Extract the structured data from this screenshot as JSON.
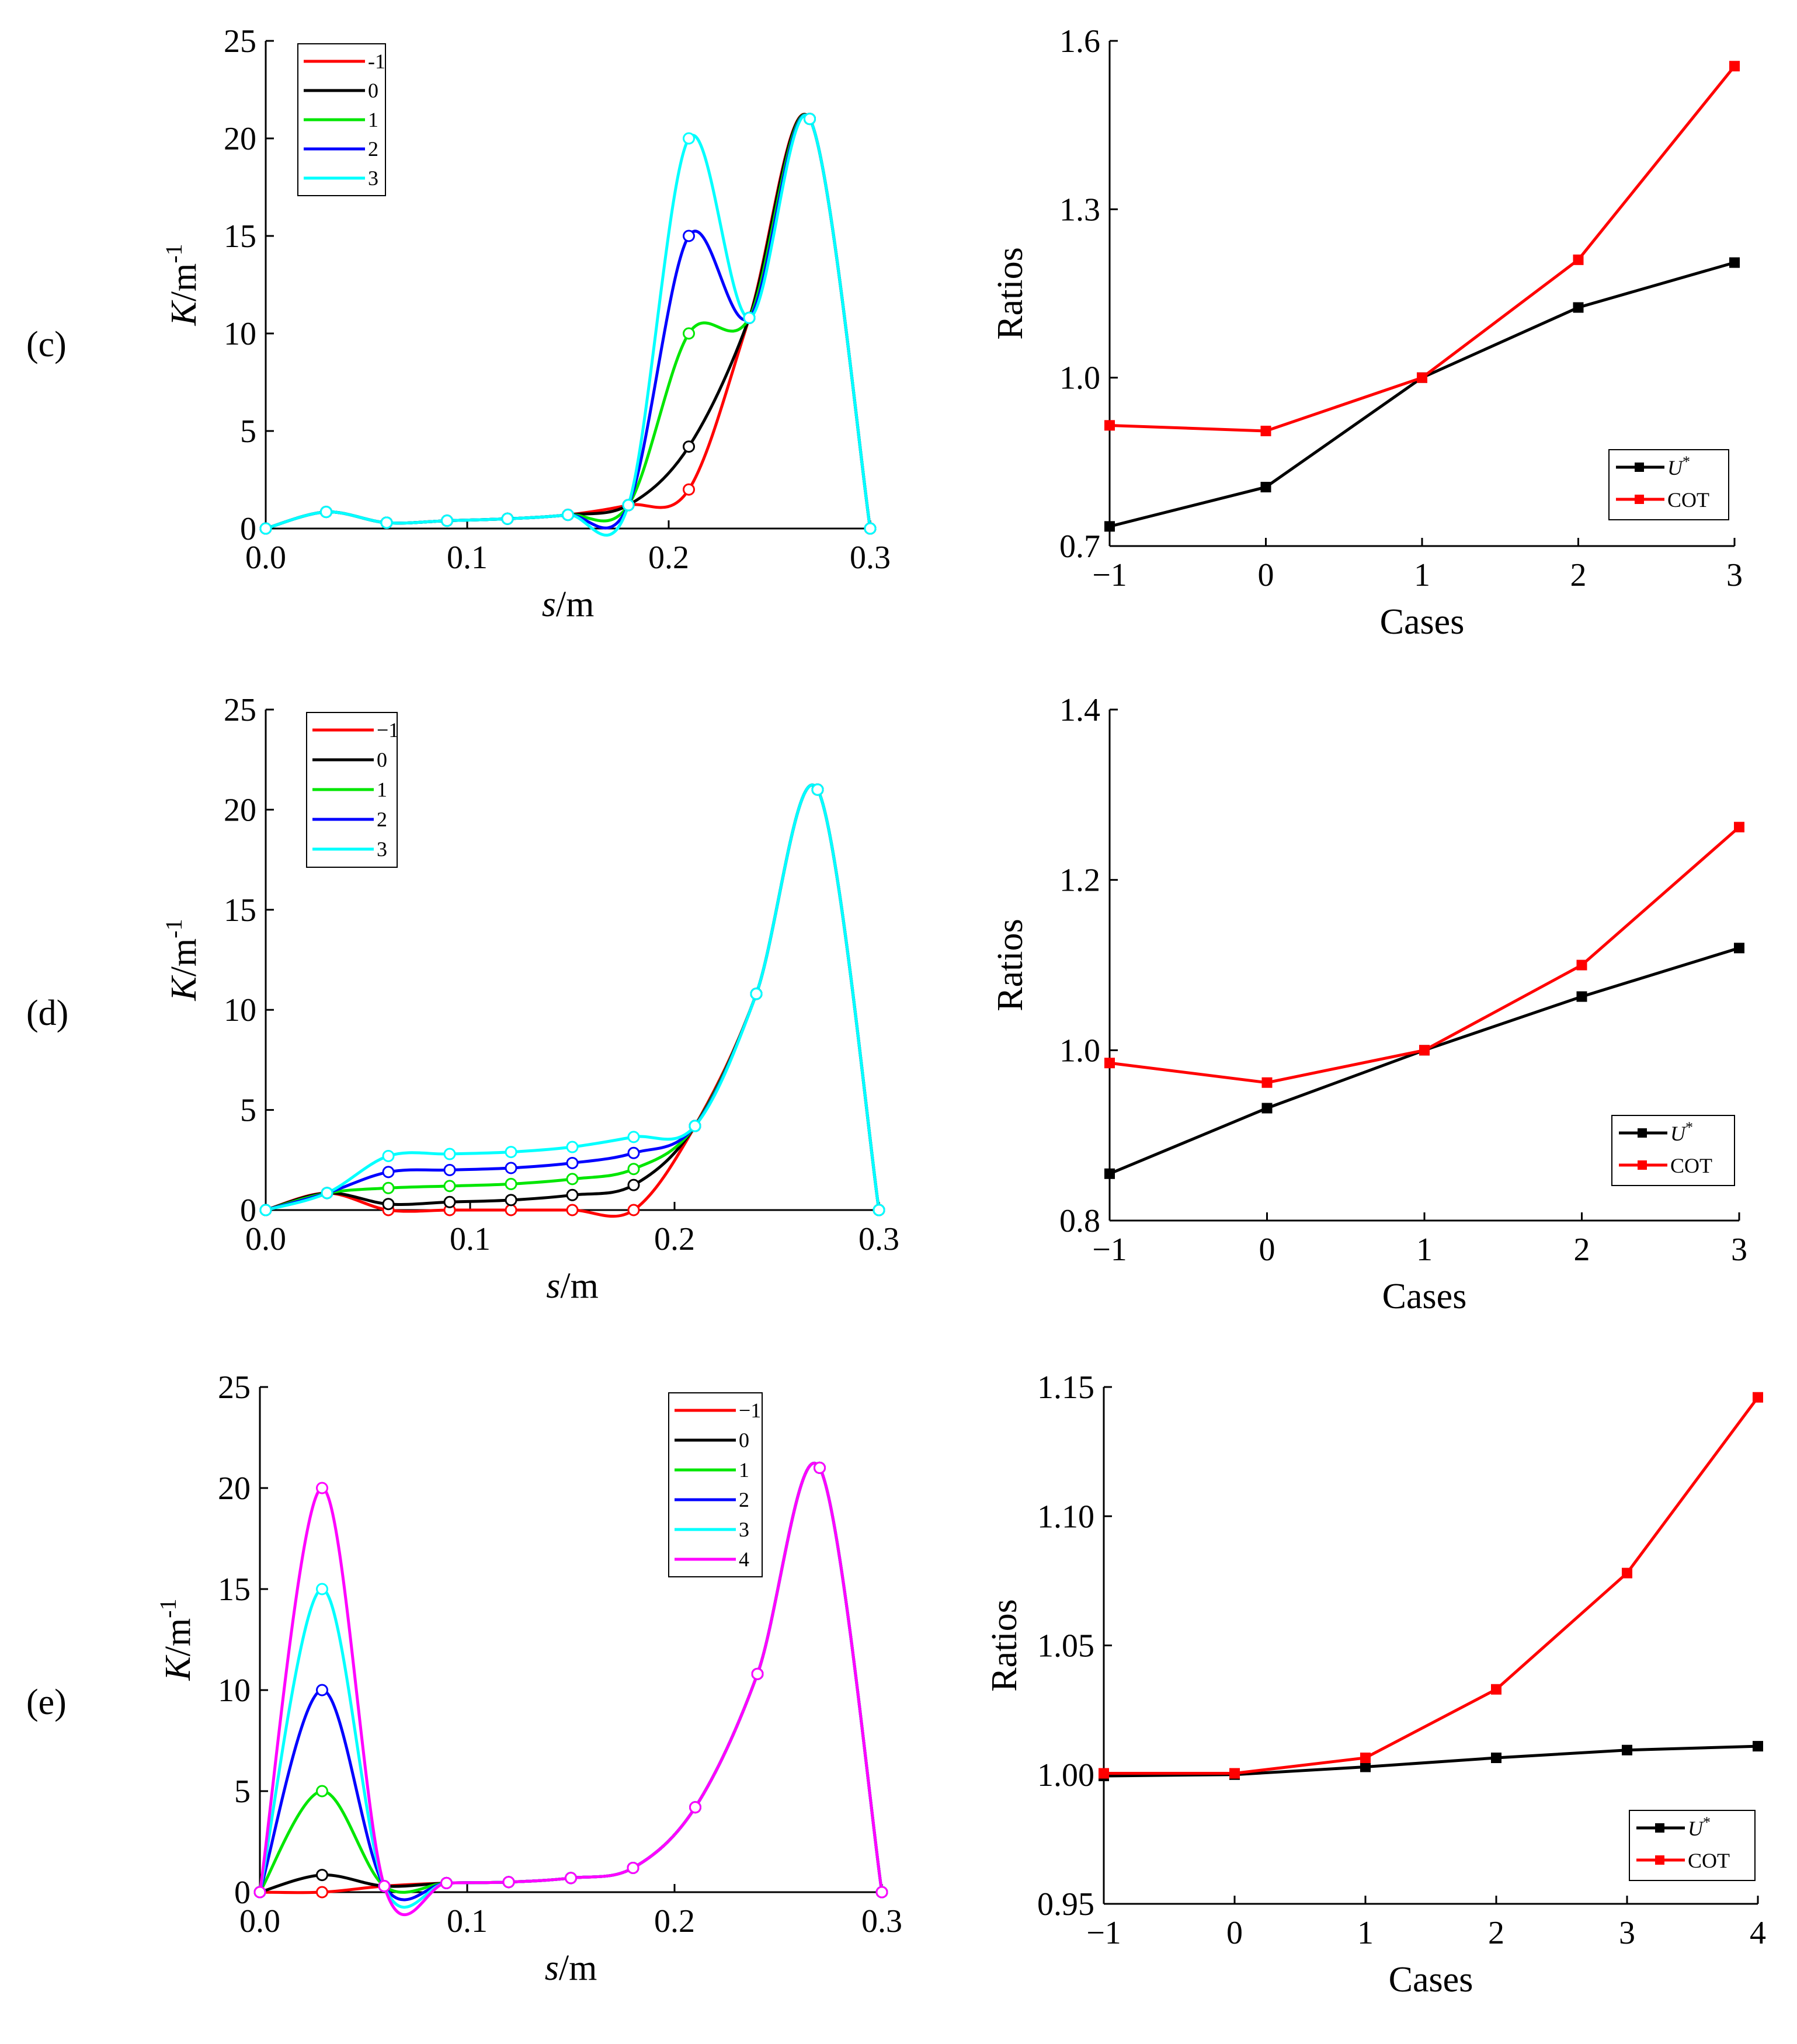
{
  "panels": [
    {
      "label": "(c)"
    },
    {
      "label": "(d)"
    },
    {
      "label": "(e)"
    }
  ],
  "colors": {
    "-1": "#ff0000",
    "0": "#000000",
    "1": "#00e600",
    "2": "#0000ff",
    "3": "#00ffff",
    "4": "#ff00ff",
    "U": "#000000",
    "COT": "#ff0000"
  },
  "chart_data": [
    {
      "id": "c-left",
      "type": "line",
      "xlabel_italic": "s",
      "xlabel_rest": "/m",
      "ylabel_italic": "K",
      "ylabel_rest": "/m",
      "ylabel_sup": "-1",
      "xlim": [
        0,
        0.3
      ],
      "ylim": [
        0,
        25
      ],
      "xticks": [
        "0.0",
        "0.1",
        "0.2",
        "0.3"
      ],
      "yticks": [
        "0",
        "5",
        "10",
        "15",
        "20",
        "25"
      ],
      "legend_position": "top-left",
      "legend_labels": [
        "-1",
        "0",
        "1",
        "2",
        "3"
      ],
      "x": [
        0,
        0.03,
        0.06,
        0.09,
        0.12,
        0.15,
        0.18,
        0.21,
        0.24,
        0.27,
        0.3
      ],
      "series": [
        {
          "name": "-1",
          "color_key": "-1",
          "values": [
            0,
            0.85,
            0.3,
            0.4,
            0.5,
            0.7,
            1.2,
            2.0,
            10.8,
            21.0,
            0
          ]
        },
        {
          "name": "0",
          "color_key": "0",
          "values": [
            0,
            0.85,
            0.3,
            0.4,
            0.5,
            0.7,
            1.2,
            4.2,
            10.8,
            21.0,
            0
          ]
        },
        {
          "name": "1",
          "color_key": "1",
          "values": [
            0,
            0.85,
            0.3,
            0.4,
            0.5,
            0.7,
            1.2,
            10.0,
            10.8,
            21.0,
            0
          ]
        },
        {
          "name": "2",
          "color_key": "2",
          "values": [
            0,
            0.85,
            0.3,
            0.4,
            0.5,
            0.7,
            1.2,
            15.0,
            10.8,
            21.0,
            0
          ]
        },
        {
          "name": "3",
          "color_key": "3",
          "values": [
            0,
            0.85,
            0.3,
            0.4,
            0.5,
            0.7,
            1.2,
            20.0,
            10.8,
            21.0,
            0
          ]
        }
      ]
    },
    {
      "id": "c-right",
      "type": "line",
      "xlabel": "Cases",
      "ylabel": "Ratios",
      "xlim": [
        -1,
        3
      ],
      "ylim": [
        0.7,
        1.6
      ],
      "xticks": [
        "−1",
        "0",
        "1",
        "2",
        "3"
      ],
      "yticks": [
        "0.7",
        "1.0",
        "1.3",
        "1.6"
      ],
      "ytick_values": [
        0.7,
        1.0,
        1.3,
        1.6
      ],
      "legend_position": "bottom-right",
      "x": [
        -1,
        0,
        1,
        2,
        3
      ],
      "series": [
        {
          "name": "U",
          "sup": "*",
          "color_key": "U",
          "values": [
            0.735,
            0.805,
            1.0,
            1.125,
            1.205
          ]
        },
        {
          "name": "COT",
          "color_key": "COT",
          "values": [
            0.915,
            0.905,
            1.0,
            1.21,
            1.555
          ]
        }
      ]
    },
    {
      "id": "d-left",
      "type": "line",
      "xlabel_italic": "s",
      "xlabel_rest": "/m",
      "ylabel_italic": "K",
      "ylabel_rest": "/m",
      "ylabel_sup": "-1",
      "xlim": [
        0,
        0.3
      ],
      "ylim": [
        0,
        25
      ],
      "xticks": [
        "0.0",
        "0.1",
        "0.2",
        "0.3"
      ],
      "yticks": [
        "0",
        "5",
        "10",
        "15",
        "20",
        "25"
      ],
      "legend_position": "top-left",
      "legend_labels": [
        "−1",
        "0",
        "1",
        "2",
        "3"
      ],
      "x": [
        0,
        0.03,
        0.06,
        0.09,
        0.12,
        0.15,
        0.18,
        0.21,
        0.24,
        0.27,
        0.3
      ],
      "series": [
        {
          "name": "−1",
          "color_key": "-1",
          "values": [
            0,
            0.85,
            0.0,
            0.0,
            0.0,
            0.0,
            0.0,
            4.2,
            10.8,
            21.0,
            0
          ]
        },
        {
          "name": "0",
          "color_key": "0",
          "values": [
            0,
            0.85,
            0.3,
            0.4,
            0.5,
            0.75,
            1.25,
            4.2,
            10.8,
            21.0,
            0
          ]
        },
        {
          "name": "1",
          "color_key": "1",
          "values": [
            0,
            0.85,
            1.1,
            1.2,
            1.3,
            1.55,
            2.05,
            4.2,
            10.8,
            21.0,
            0
          ]
        },
        {
          "name": "2",
          "color_key": "2",
          "values": [
            0,
            0.85,
            1.9,
            2.0,
            2.1,
            2.35,
            2.85,
            4.2,
            10.8,
            21.0,
            0
          ]
        },
        {
          "name": "3",
          "color_key": "3",
          "values": [
            0,
            0.85,
            2.7,
            2.8,
            2.9,
            3.15,
            3.65,
            4.2,
            10.8,
            21.0,
            0
          ]
        }
      ]
    },
    {
      "id": "d-right",
      "type": "line",
      "xlabel": "Cases",
      "ylabel": "Ratios",
      "xlim": [
        -1,
        3
      ],
      "ylim": [
        0.8,
        1.4
      ],
      "xticks": [
        "−1",
        "0",
        "1",
        "2",
        "3"
      ],
      "yticks": [
        "0.8",
        "1.0",
        "1.2",
        "1.4"
      ],
      "ytick_values": [
        0.8,
        1.0,
        1.2,
        1.4
      ],
      "legend_position": "bottom-right",
      "x": [
        -1,
        0,
        1,
        2,
        3
      ],
      "series": [
        {
          "name": "U",
          "sup": "*",
          "color_key": "U",
          "values": [
            0.855,
            0.932,
            1.0,
            1.063,
            1.12
          ]
        },
        {
          "name": "COT",
          "color_key": "COT",
          "values": [
            0.985,
            0.962,
            1.0,
            1.1,
            1.262
          ]
        }
      ]
    },
    {
      "id": "e-left",
      "type": "line",
      "xlabel_italic": "s",
      "xlabel_rest": "/m",
      "ylabel_italic": "K",
      "ylabel_rest": "/m",
      "ylabel_sup": "-1",
      "xlim": [
        0,
        0.3
      ],
      "ylim": [
        0,
        25
      ],
      "xticks": [
        "0.0",
        "0.1",
        "0.2",
        "0.3"
      ],
      "yticks": [
        "0",
        "5",
        "10",
        "15",
        "20",
        "25"
      ],
      "legend_position": "top-right",
      "legend_labels": [
        "−1",
        "0",
        "1",
        "2",
        "3",
        "4"
      ],
      "x": [
        0,
        0.03,
        0.06,
        0.09,
        0.12,
        0.15,
        0.18,
        0.21,
        0.24,
        0.27,
        0.3
      ],
      "series": [
        {
          "name": "−1",
          "color_key": "-1",
          "values": [
            0,
            0.0,
            0.3,
            0.45,
            0.5,
            0.7,
            1.2,
            4.2,
            10.8,
            21.0,
            0
          ]
        },
        {
          "name": "0",
          "color_key": "0",
          "values": [
            0,
            0.85,
            0.3,
            0.45,
            0.5,
            0.7,
            1.2,
            4.2,
            10.8,
            21.0,
            0
          ]
        },
        {
          "name": "1",
          "color_key": "1",
          "values": [
            0,
            5.0,
            0.3,
            0.45,
            0.5,
            0.7,
            1.2,
            4.2,
            10.8,
            21.0,
            0
          ]
        },
        {
          "name": "2",
          "color_key": "2",
          "values": [
            0,
            10.0,
            0.3,
            0.45,
            0.5,
            0.7,
            1.2,
            4.2,
            10.8,
            21.0,
            0
          ]
        },
        {
          "name": "3",
          "color_key": "3",
          "values": [
            0,
            15.0,
            0.3,
            0.45,
            0.5,
            0.7,
            1.2,
            4.2,
            10.8,
            21.0,
            0
          ]
        },
        {
          "name": "4",
          "color_key": "4",
          "values": [
            0,
            20.0,
            0.3,
            0.45,
            0.5,
            0.7,
            1.2,
            4.2,
            10.8,
            21.0,
            0
          ]
        }
      ]
    },
    {
      "id": "e-right",
      "type": "line",
      "xlabel": "Cases",
      "ylabel": "Ratios",
      "xlim": [
        -1,
        4
      ],
      "ylim": [
        0.95,
        1.15
      ],
      "xticks": [
        "−1",
        "0",
        "1",
        "2",
        "3",
        "4"
      ],
      "yticks": [
        "0.95",
        "1.00",
        "1.05",
        "1.10",
        "1.15"
      ],
      "ytick_values": [
        0.95,
        1.0,
        1.05,
        1.1,
        1.15
      ],
      "legend_position": "bottom-right",
      "x": [
        -1,
        0,
        1,
        2,
        3,
        4
      ],
      "series": [
        {
          "name": "U",
          "sup": "*",
          "color_key": "U",
          "values": [
            0.9995,
            1.0,
            1.003,
            1.0065,
            1.0095,
            1.011
          ]
        },
        {
          "name": "COT",
          "color_key": "COT",
          "values": [
            1.0005,
            1.0005,
            1.0065,
            1.033,
            1.078,
            1.146
          ]
        }
      ]
    }
  ]
}
